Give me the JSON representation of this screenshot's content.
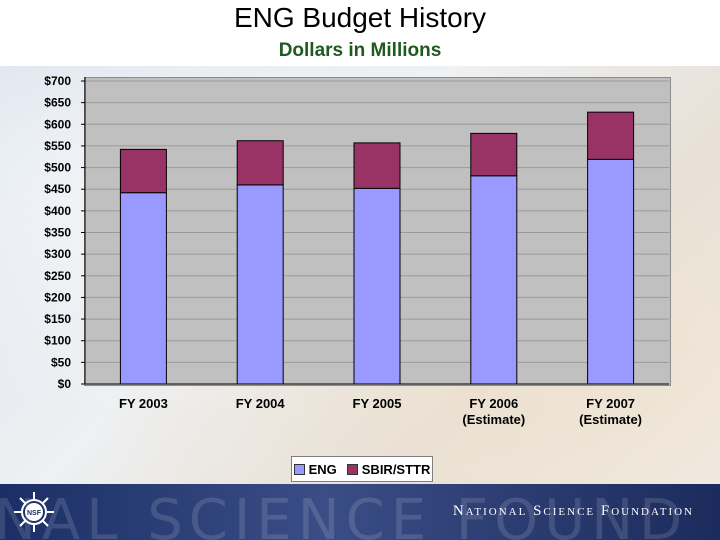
{
  "header": {
    "title": "ENG Budget History",
    "subtitle": "Dollars in Millions"
  },
  "chart_data": {
    "type": "bar",
    "stacked": true,
    "categories": [
      "FY 2003",
      "FY 2004",
      "FY 2005",
      "FY 2006\n(Estimate)",
      "FY 2007\n(Estimate)"
    ],
    "series": [
      {
        "name": "ENG",
        "values": [
          442,
          460,
          452,
          481,
          519
        ],
        "color": "#9999ff"
      },
      {
        "name": "SBIR/STTR",
        "values": [
          100,
          102,
          105,
          98,
          109
        ],
        "color": "#993366"
      }
    ],
    "ylim": [
      0,
      700
    ],
    "y_ticks": [
      "$0",
      "$50",
      "$100",
      "$150",
      "$200",
      "$250",
      "$300",
      "$350",
      "$400",
      "$450",
      "$500",
      "$550",
      "$600",
      "$650",
      "$700"
    ],
    "grid": true,
    "legend": "bottom"
  },
  "footer": {
    "org_name": "National Science Foundation",
    "watermark": "NAL SCIENCE FOUND",
    "logo_icon": "nsf-logo-icon"
  }
}
